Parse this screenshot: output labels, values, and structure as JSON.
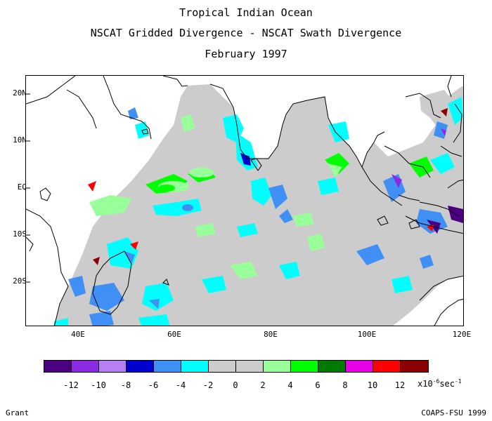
{
  "titles": {
    "line1": "Tropical Indian Ocean",
    "line2": "NSCAT Gridded Divergence - NSCAT Swath Divergence",
    "line3": "February 1997"
  },
  "axes": {
    "lat_labels": [
      "20N",
      "10N",
      "EQ",
      "10S",
      "20S"
    ],
    "lon_labels": [
      "40E",
      "60E",
      "80E",
      "100E",
      "120E"
    ]
  },
  "colorbar": {
    "colors": [
      "#4b0082",
      "#8a2be2",
      "#b77ff0",
      "#0000cd",
      "#3f8ff5",
      "#00ffff",
      "#cccccc",
      "#cccccc",
      "#99ff99",
      "#00ff00",
      "#007a00",
      "#e600e6",
      "#ff0000",
      "#8b0000"
    ],
    "labels": [
      "-12",
      "-10",
      "-8",
      "-6",
      "-4",
      "-2",
      "0",
      "2",
      "4",
      "6",
      "8",
      "10",
      "12"
    ],
    "unit_prefix": "x10",
    "unit_exp1": "-6",
    "unit_mid": "sec",
    "unit_exp2": "-1"
  },
  "credits": {
    "left": "Grant",
    "right": "COAPS-FSU 1999"
  }
}
